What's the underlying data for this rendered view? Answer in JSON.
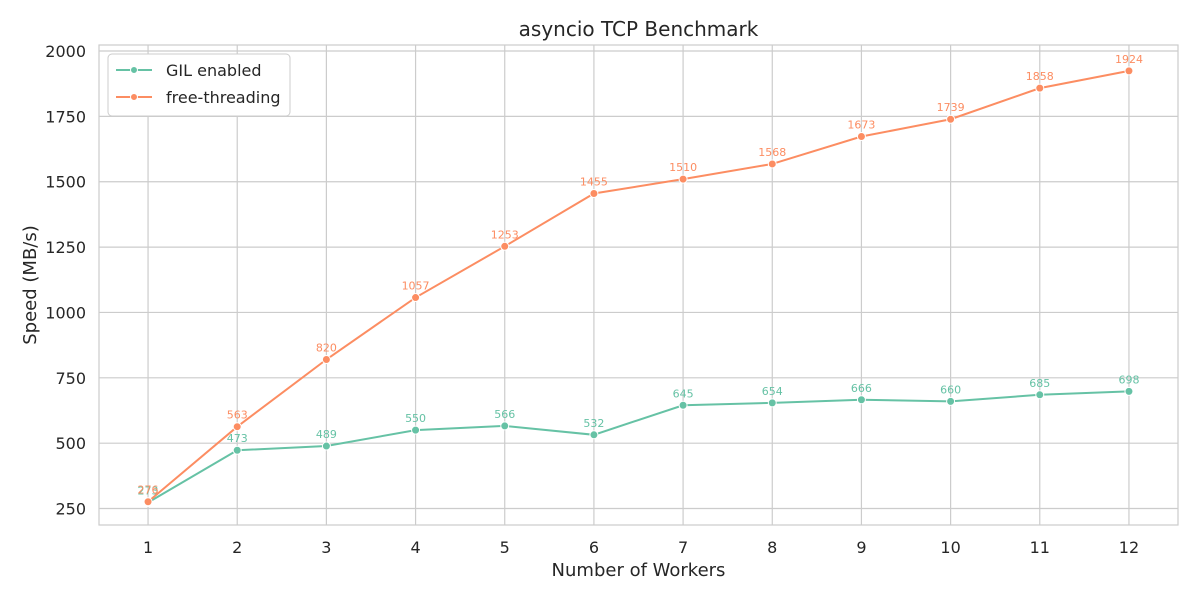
{
  "chart_data": {
    "type": "line",
    "title": "asyncio TCP Benchmark",
    "xlabel": "Number of Workers",
    "ylabel": "Speed (MB/s)",
    "x": [
      1,
      2,
      3,
      4,
      5,
      6,
      7,
      8,
      9,
      10,
      11,
      12
    ],
    "xlim": [
      0.45,
      12.55
    ],
    "ylim": [
      187,
      2023
    ],
    "yticks": [
      250,
      500,
      750,
      1000,
      1250,
      1500,
      1750,
      2000
    ],
    "grid": true,
    "legend_position": "top-left",
    "series": [
      {
        "name": "GIL enabled",
        "color": "#66c2a5",
        "values": [
          273,
          473,
          489,
          550,
          566,
          532,
          645,
          654,
          666,
          660,
          685,
          698
        ]
      },
      {
        "name": "free-threading",
        "color": "#fc8d62",
        "values": [
          276,
          563,
          820,
          1057,
          1253,
          1455,
          1510,
          1568,
          1673,
          1739,
          1858,
          1924
        ]
      }
    ]
  }
}
